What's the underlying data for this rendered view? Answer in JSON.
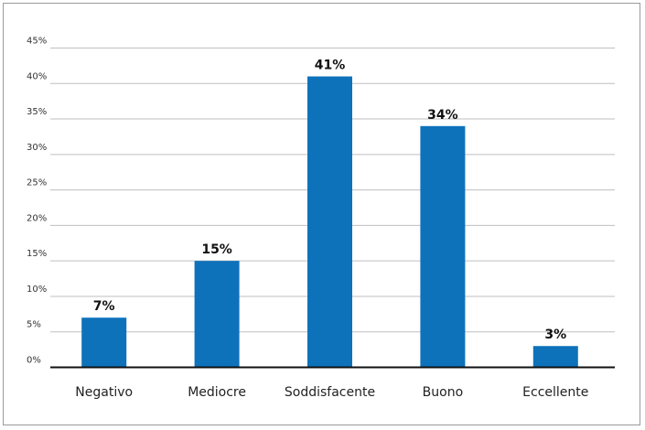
{
  "chart_data": {
    "type": "bar",
    "categories": [
      "Negativo",
      "Mediocre",
      "Soddisfacente",
      "Buono",
      "Eccellente"
    ],
    "values": [
      7,
      15,
      41,
      34,
      3
    ],
    "data_labels": [
      "7%",
      "15%",
      "41%",
      "34%",
      "3%"
    ],
    "ylim": [
      0,
      45
    ],
    "yticks": [
      0,
      5,
      10,
      15,
      20,
      25,
      30,
      35,
      40,
      45
    ],
    "ytick_labels": [
      "0%",
      "5%",
      "10%",
      "15%",
      "20%",
      "25%",
      "30%",
      "35%",
      "40%",
      "45%"
    ],
    "grid": true,
    "bar_color": "#0e72bb",
    "title": "",
    "xlabel": "",
    "ylabel": ""
  }
}
